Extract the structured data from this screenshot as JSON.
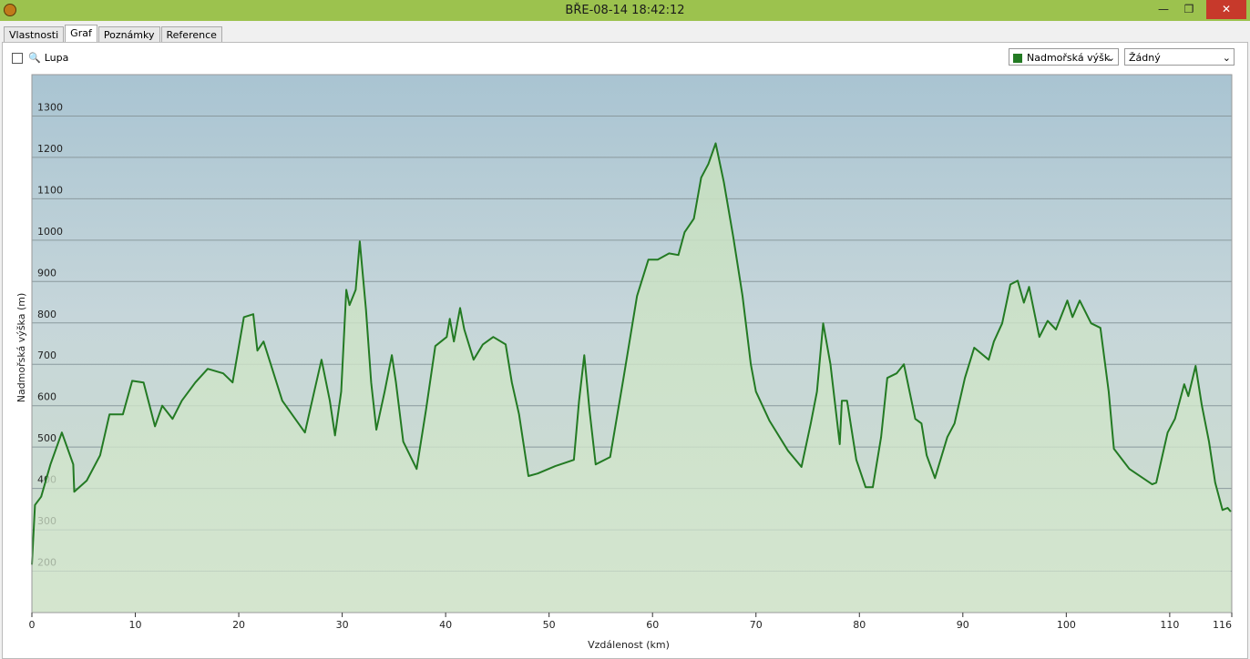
{
  "window": {
    "title": "BŘE-08-14 18:42:12"
  },
  "tabs": [
    "Vlastnosti",
    "Graf",
    "Poznámky",
    "Reference"
  ],
  "toolbar": {
    "zoom": "Lupa",
    "series_select": "Nadmořská výšk",
    "second_select": "Žádný"
  },
  "chart_data": {
    "type": "area",
    "ylabel": "Nadmořská výška (m)",
    "xlabel": "Vzdálenost  (km)",
    "color": "#237a23",
    "grid": true,
    "xlim": [
      0,
      116
    ],
    "xticks": [
      0,
      10,
      20,
      30,
      40,
      50,
      60,
      70,
      80,
      90,
      100,
      110,
      116
    ],
    "ylim": [
      100,
      1400
    ],
    "yticks": [
      200,
      300,
      400,
      500,
      600,
      700,
      800,
      900,
      1000,
      1100,
      1200,
      1300
    ],
    "x": [
      0,
      0.3,
      0.9,
      1.8,
      2.9,
      4.0,
      4.1,
      5.3,
      6.6,
      7.5,
      8.8,
      9.7,
      10.8,
      11.9,
      12.6,
      13.6,
      14.5,
      15.8,
      17.0,
      18.5,
      19.4,
      20.5,
      21.4,
      21.8,
      22.4,
      24.2,
      26.4,
      27.3,
      28.0,
      28.8,
      29.3,
      29.9,
      30.4,
      30.7,
      31.3,
      31.7,
      32.3,
      32.8,
      33.3,
      34.1,
      34.8,
      35.2,
      35.9,
      37.2,
      38.1,
      39.0,
      40.1,
      40.4,
      40.8,
      41.4,
      41.8,
      42.7,
      43.6,
      44.6,
      45.8,
      46.4,
      47.1,
      48.0,
      48.9,
      50.6,
      52.4,
      52.9,
      53.4,
      53.9,
      54.5,
      55.9,
      57.2,
      58.5,
      59.6,
      60.5,
      61.6,
      62.5,
      63.1,
      64.0,
      64.7,
      65.4,
      66.1,
      66.9,
      67.8,
      68.7,
      69.5,
      70.0,
      71.3,
      73.1,
      74.4,
      75.3,
      75.9,
      76.5,
      77.2,
      78.1,
      78.3,
      78.8,
      79.7,
      80.6,
      81.3,
      82.1,
      82.7,
      83.6,
      84.3,
      85.4,
      86.0,
      86.5,
      87.3,
      88.5,
      89.2,
      90.2,
      91.1,
      92.5,
      93.0,
      93.8,
      94.6,
      95.3,
      95.9,
      96.4,
      97.4,
      98.2,
      99.0,
      100.1,
      100.6,
      101.3,
      102.4,
      103.3,
      104.1,
      104.6,
      106.1,
      108.3,
      108.7,
      109.8,
      110.5,
      111.4,
      111.8,
      112.5,
      113.1,
      113.8,
      114.4,
      115.1,
      115.6,
      115.9
    ],
    "values": [
      216,
      360,
      380,
      458,
      535,
      458,
      392,
      419,
      480,
      579,
      579,
      660,
      656,
      550,
      600,
      568,
      612,
      656,
      689,
      678,
      656,
      814,
      821,
      733,
      755,
      612,
      535,
      634,
      711,
      612,
      528,
      634,
      880,
      843,
      880,
      997,
      832,
      656,
      542,
      634,
      722,
      656,
      513,
      447,
      590,
      744,
      766,
      810,
      755,
      836,
      784,
      711,
      748,
      766,
      748,
      656,
      579,
      430,
      436,
      454,
      469,
      612,
      722,
      590,
      458,
      476,
      667,
      865,
      953,
      953,
      968,
      964,
      1019,
      1052,
      1151,
      1184,
      1234,
      1140,
      1008,
      865,
      700,
      634,
      564,
      491,
      452,
      557,
      634,
      799,
      700,
      507,
      612,
      612,
      469,
      403,
      403,
      524,
      667,
      678,
      700,
      568,
      557,
      480,
      425,
      524,
      557,
      667,
      740,
      711,
      755,
      799,
      893,
      902,
      849,
      887,
      766,
      805,
      784,
      854,
      814,
      854,
      799,
      788,
      634,
      496,
      447,
      410,
      414,
      535,
      568,
      652,
      623,
      696,
      601,
      513,
      414,
      348,
      353,
      344
    ]
  }
}
